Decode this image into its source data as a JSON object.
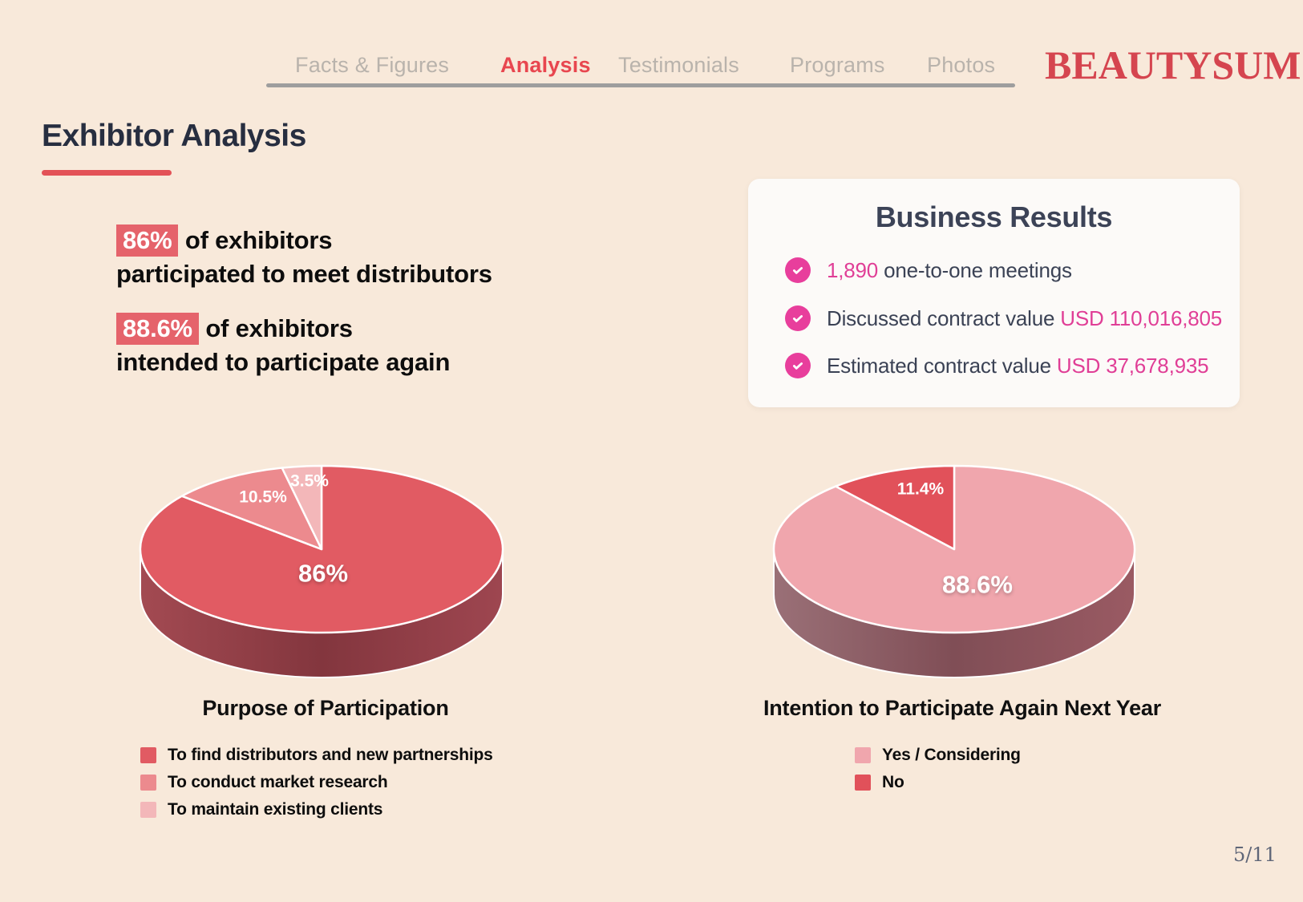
{
  "nav": {
    "tabs": [
      {
        "label": "Facts & Figures",
        "active": false
      },
      {
        "label": "Analysis",
        "active": true
      },
      {
        "label": "Testimonials",
        "active": false
      },
      {
        "label": "Programs",
        "active": false
      },
      {
        "label": "Photos",
        "active": false
      }
    ],
    "logo": "BEAUTYSUM"
  },
  "page": {
    "title": "Exhibitor Analysis",
    "page_number": "5/11"
  },
  "stats": [
    {
      "highlight": "86%",
      "line1_rest": " of exhibitors",
      "line2": "participated to meet distributors"
    },
    {
      "highlight": "88.6%",
      "line1_rest": " of exhibitors",
      "line2": "intended to participate again"
    }
  ],
  "business_results": {
    "title": "Business Results",
    "items": [
      {
        "segments": [
          {
            "text": "1,890",
            "highlight": true
          },
          {
            "text": " one-to-one meetings",
            "highlight": false
          }
        ]
      },
      {
        "segments": [
          {
            "text": "Discussed contract value ",
            "highlight": false
          },
          {
            "text": "USD 110,016,805",
            "highlight": true
          }
        ]
      },
      {
        "segments": [
          {
            "text": "Estimated contract value ",
            "highlight": false
          },
          {
            "text": "USD 37,678,935",
            "highlight": true
          }
        ]
      }
    ]
  },
  "chart_data": [
    {
      "type": "pie",
      "style": "3d",
      "title": "Purpose of Participation",
      "labels": [
        "To find distributors and new partnerships",
        "To conduct market research",
        "To maintain existing clients"
      ],
      "values": [
        86,
        10.5,
        3.5
      ],
      "value_labels": [
        "86%",
        "10.5%",
        "3.5%"
      ],
      "colors": [
        "#e15b63",
        "#ec8a8e",
        "#f3b7b9"
      ],
      "legend_position": "bottom"
    },
    {
      "type": "pie",
      "style": "3d",
      "title": "Intention to Participate Again Next Year",
      "labels": [
        "Yes / Considering",
        "No"
      ],
      "values": [
        88.6,
        11.4
      ],
      "value_labels": [
        "88.6%",
        "11.4%"
      ],
      "colors": [
        "#f0a6ad",
        "#e1515a"
      ],
      "legend_position": "bottom"
    }
  ],
  "colors": {
    "background": "#f8e9da",
    "accent_red": "#e8464f",
    "highlight_red": "#e5636b",
    "title_dark": "#272e40",
    "logo_red": "#d5454f",
    "pink": "#e83e9c",
    "card_bg": "#fcfaf8",
    "card_text": "#3b4255",
    "nav_gray": "#b9b3ac",
    "page_number_gray": "#5f6678"
  }
}
